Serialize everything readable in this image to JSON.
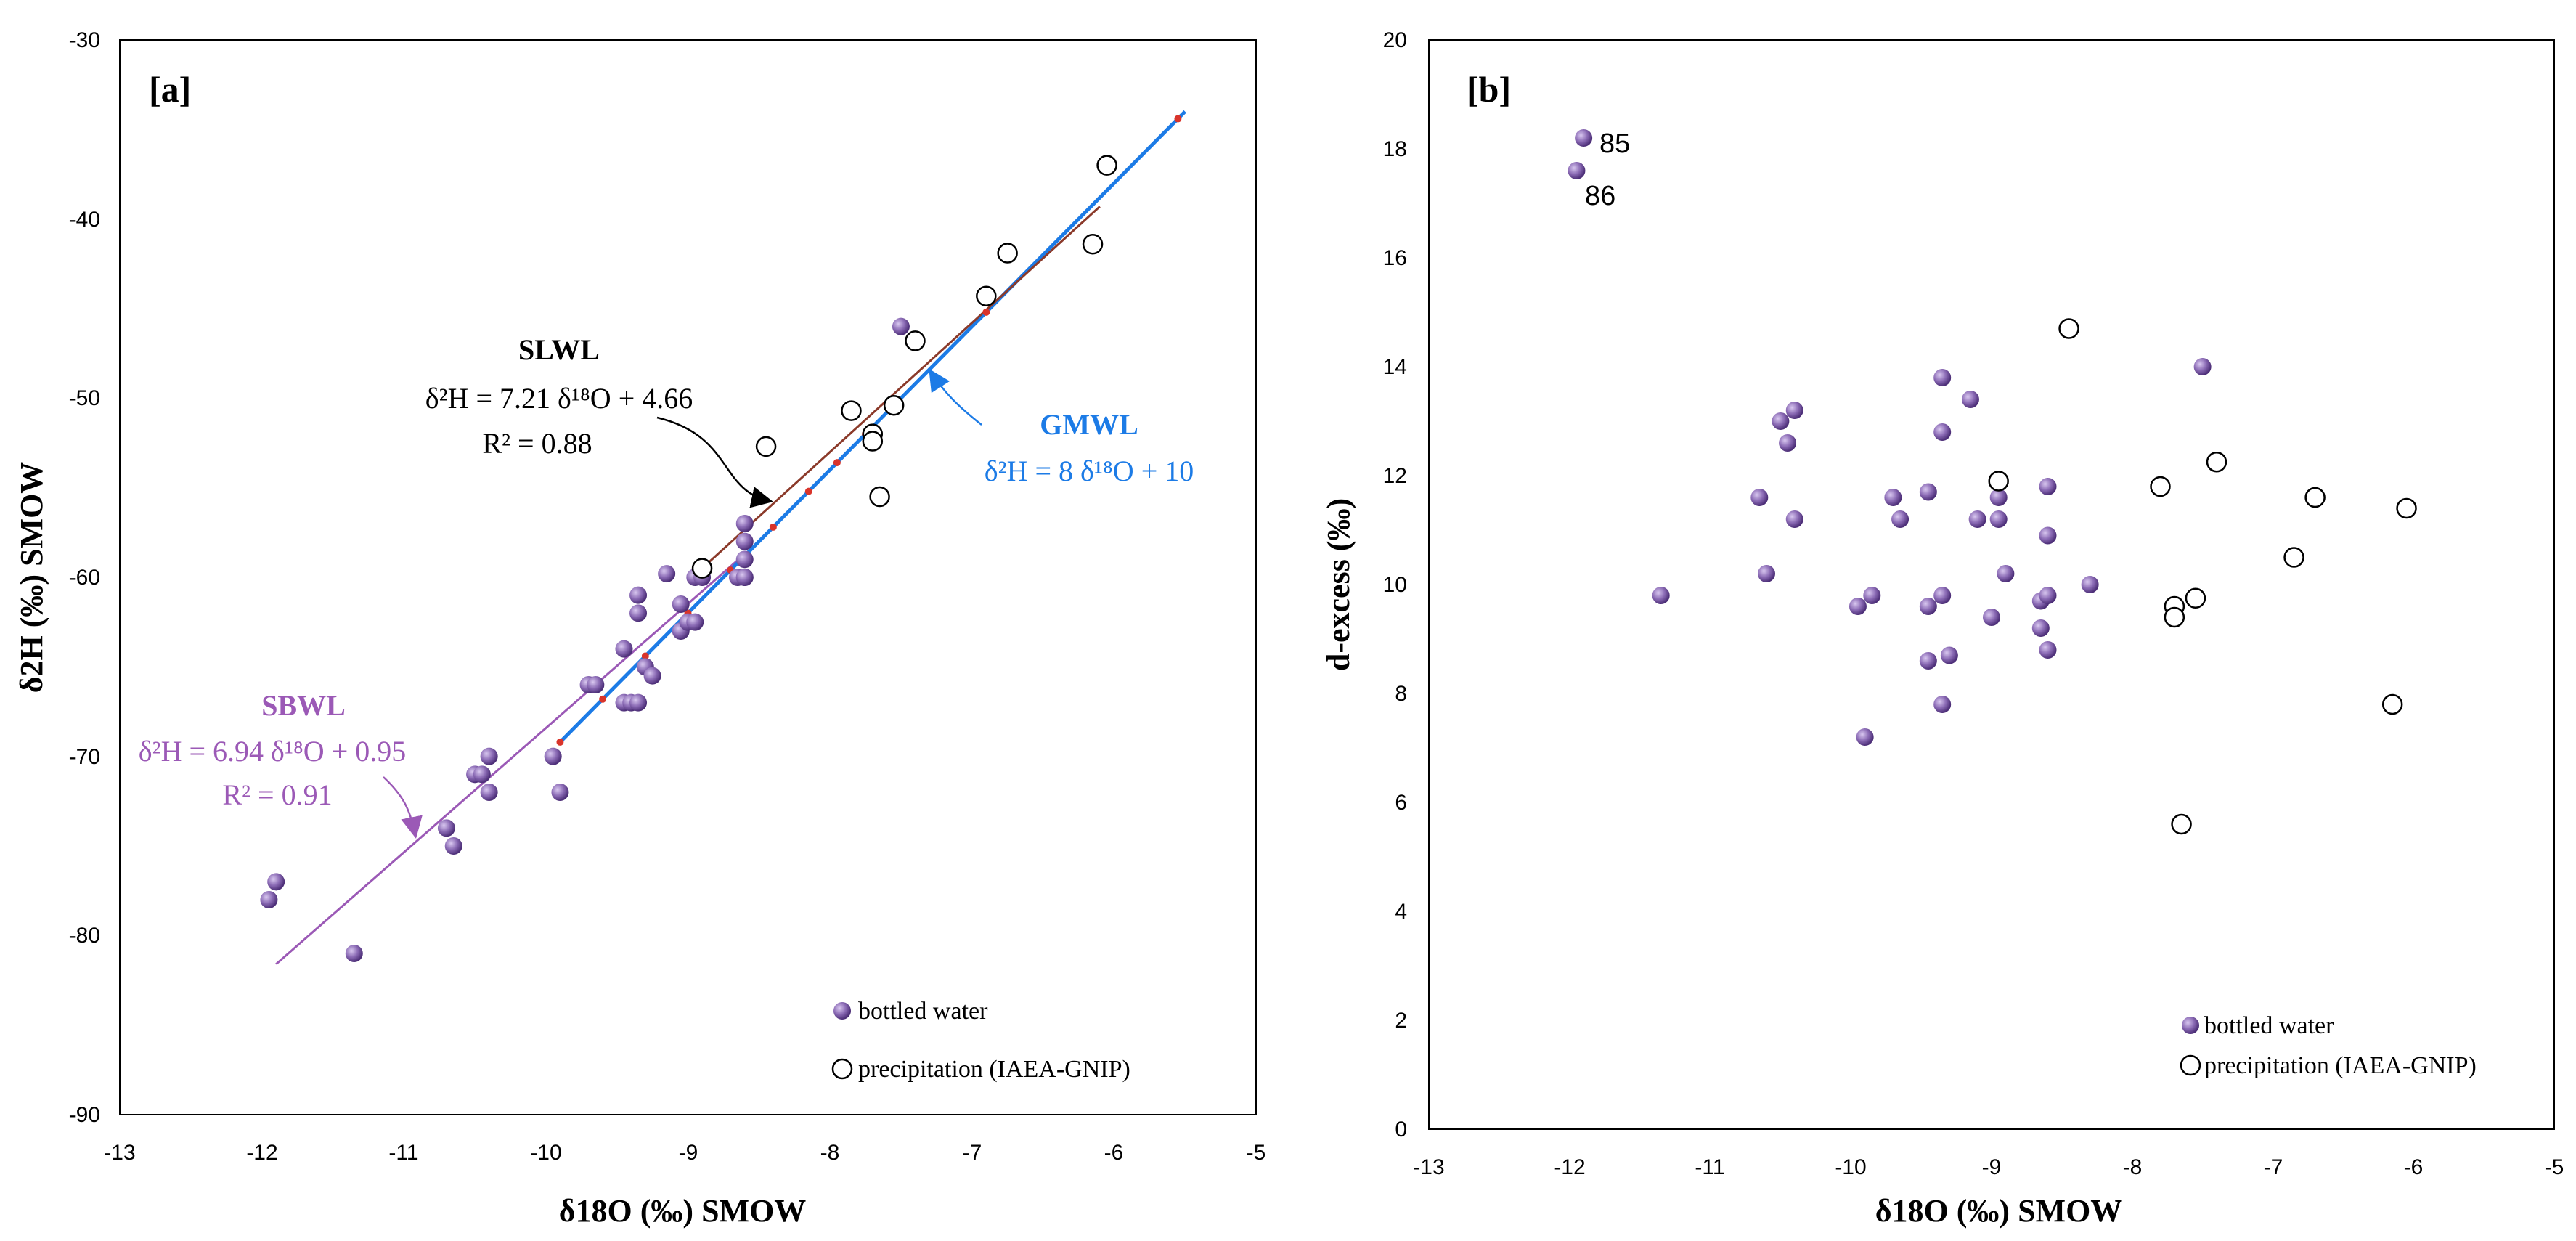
{
  "colors": {
    "bottled": "#8b6bb5",
    "gmwl": "#1c7be6",
    "slwl": "#8b3a2a",
    "sbwl": "#9b59b6",
    "text": "#000000"
  },
  "chart_data": [
    {
      "type": "scatter",
      "panel_label": "[a]",
      "xlabel": "δ18O (‰) SMOW",
      "ylabel": "δ2H (‰) SMOW",
      "xlim": [
        -13,
        -5
      ],
      "ylim": [
        -90,
        -30
      ],
      "xticks": [
        "-13",
        "-12",
        "-11",
        "-10",
        "-9",
        "-8",
        "-7",
        "-6",
        "-5"
      ],
      "yticks": [
        "-30",
        "-40",
        "-50",
        "-60",
        "-70",
        "-80",
        "-90"
      ],
      "lines": [
        {
          "name": "GMWL",
          "x": [
            -9.9,
            -5.5
          ],
          "y": [
            -69.2,
            -34.0
          ]
        },
        {
          "name": "SLWL",
          "x": [
            -8.9,
            -6.1
          ],
          "y": [
            -59.5,
            -39.3
          ]
        },
        {
          "name": "SBWL",
          "x": [
            -11.9,
            -8.6
          ],
          "y": [
            -81.6,
            -58.7
          ]
        }
      ],
      "series": [
        {
          "name": "bottled water",
          "x": [
            -11.95,
            -11.9,
            -11.35,
            -10.7,
            -10.65,
            -10.5,
            -10.45,
            -10.4,
            -10.4,
            -9.95,
            -9.9,
            -9.7,
            -9.65,
            -9.45,
            -9.45,
            -9.4,
            -9.35,
            -9.35,
            -9.35,
            -9.3,
            -9.25,
            -9.15,
            -9.05,
            -9.05,
            -9.0,
            -8.95,
            -8.95,
            -8.9,
            -8.65,
            -8.6,
            -8.6,
            -8.6,
            -8.6,
            -8.6,
            -7.5
          ],
          "y": [
            -78,
            -77,
            -81,
            -74,
            -75,
            -71,
            -71,
            -70,
            -72,
            -70,
            -72,
            -66,
            -66,
            -64,
            -67,
            -67,
            -61,
            -62,
            -67,
            -65,
            -65.5,
            -59.8,
            -61.5,
            -63,
            -62.5,
            -62.5,
            -60,
            -60,
            -60,
            -60,
            -57,
            -58,
            -59,
            -60,
            -46
          ]
        },
        {
          "name": "precipitation (IAEA-GNIP)",
          "x": [
            -8.9,
            -8.45,
            -7.85,
            -7.7,
            -7.7,
            -7.65,
            -7.55,
            -7.4,
            -6.9,
            -6.75,
            -6.15,
            -6.05
          ],
          "y": [
            -59.5,
            -52.7,
            -50.7,
            -52,
            -52.4,
            -55.5,
            -50.4,
            -46.8,
            -44.3,
            -41.9,
            -41.4,
            -37
          ]
        }
      ],
      "annotations": {
        "slwl_name": "SLWL",
        "slwl_eq": "δ²H = 7.21 δ¹⁸O + 4.66",
        "slwl_r2": "R² = 0.88",
        "gmwl_name": "GMWL",
        "gmwl_eq": "δ²H = 8 δ¹⁸O + 10",
        "sbwl_name": "SBWL",
        "sbwl_eq": "δ²H = 6.94 δ¹⁸O + 0.95",
        "sbwl_r2": "R² = 0.91"
      },
      "legend": [
        "bottled water",
        "precipitation (IAEA-GNIP)"
      ]
    },
    {
      "type": "scatter",
      "panel_label": "[b]",
      "xlabel": "δ18O (‰) SMOW",
      "ylabel": "d-excess  (‰)",
      "xlim": [
        -13,
        -5
      ],
      "ylim": [
        0,
        20
      ],
      "xticks": [
        "-13",
        "-12",
        "-11",
        "-10",
        "-9",
        "-8",
        "-7",
        "-6",
        "-5"
      ],
      "yticks": [
        "20",
        "18",
        "16",
        "14",
        "12",
        "10",
        "8",
        "6",
        "4",
        "2",
        "0"
      ],
      "series": [
        {
          "name": "bottled water",
          "x": [
            -11.9,
            -11.95,
            -11.35,
            -10.65,
            -10.6,
            -10.4,
            -10.4,
            -10.45,
            -10.5,
            -9.95,
            -9.9,
            -9.85,
            -9.7,
            -9.65,
            -9.45,
            -9.45,
            -9.45,
            -9.35,
            -9.35,
            -9.35,
            -9.35,
            -9.3,
            -9.15,
            -9.1,
            -9.0,
            -8.95,
            -8.95,
            -8.95,
            -8.9,
            -8.65,
            -8.65,
            -8.6,
            -8.6,
            -8.6,
            -8.6,
            -8.3,
            -7.5
          ],
          "y": [
            18.2,
            17.6,
            9.8,
            11.6,
            10.2,
            13.2,
            11.2,
            12.6,
            13.0,
            9.6,
            7.2,
            9.8,
            11.6,
            11.2,
            11.7,
            9.6,
            8.6,
            13.8,
            12.8,
            9.8,
            7.8,
            8.7,
            13.4,
            11.2,
            9.4,
            11.6,
            11.2,
            11.9,
            10.2,
            9.7,
            9.2,
            11.8,
            10.9,
            9.8,
            8.8,
            10.0,
            14.0
          ]
        },
        {
          "name": "precipitation (IAEA-GNIP)",
          "x": [
            -8.95,
            -8.45,
            -7.8,
            -7.7,
            -7.7,
            -7.65,
            -7.55,
            -7.4,
            -6.85,
            -6.7,
            -6.15,
            -6.05
          ],
          "y": [
            11.9,
            14.7,
            11.8,
            9.6,
            9.4,
            5.6,
            9.75,
            12.25,
            10.5,
            11.6,
            7.8,
            11.4
          ]
        }
      ],
      "point_labels": [
        {
          "text": "85",
          "x": -11.9,
          "y": 18.2
        },
        {
          "text": "86",
          "x": -11.95,
          "y": 17.6
        }
      ],
      "legend": [
        "bottled water",
        "precipitation (IAEA-GNIP)"
      ]
    }
  ]
}
